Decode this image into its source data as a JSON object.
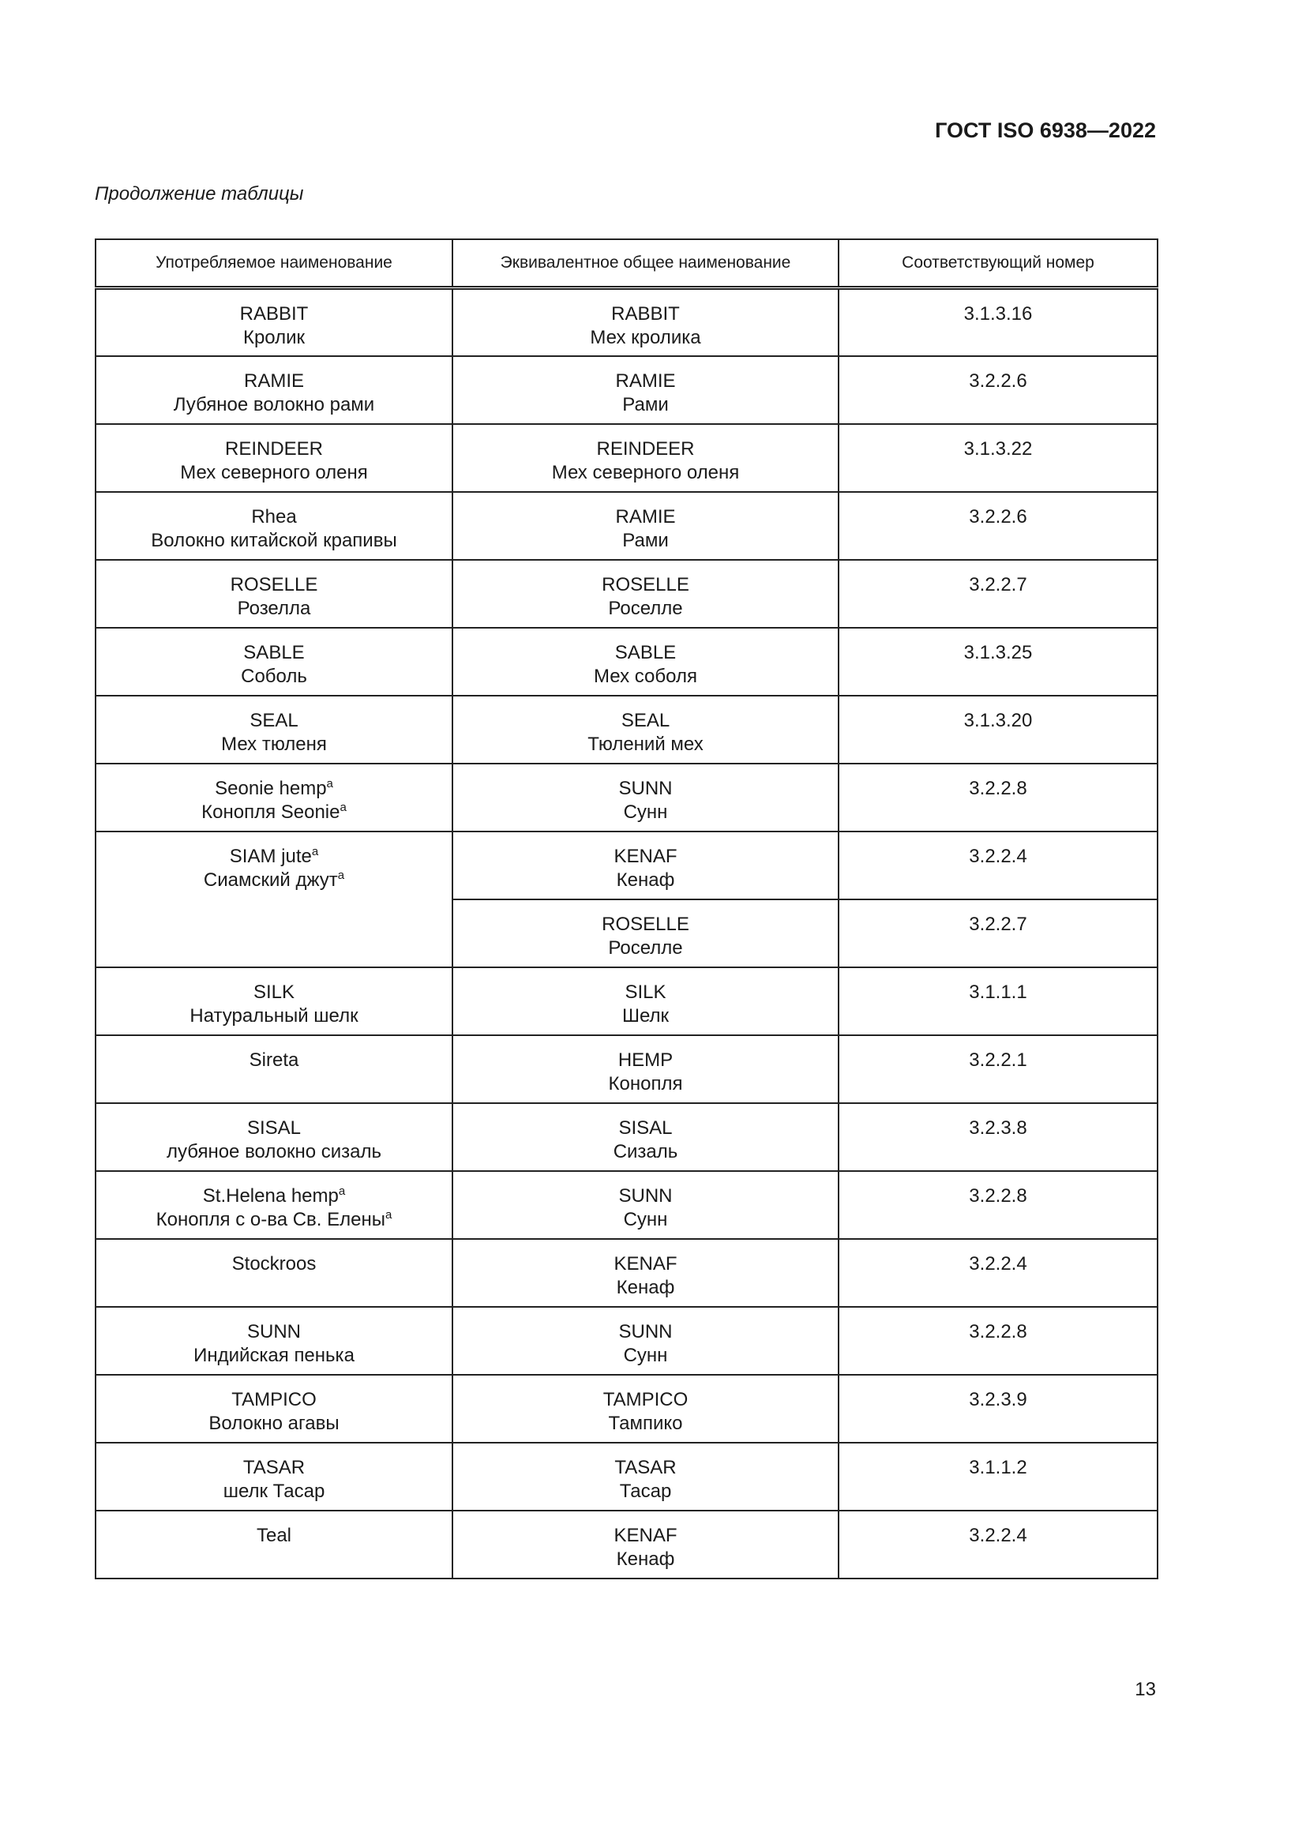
{
  "header": {
    "document_id": "ГОСТ ISO 6938—2022"
  },
  "caption": "Продолжение таблицы",
  "table": {
    "columns": [
      "Употребляемое наименование",
      "Эквивалентное общее наименование",
      "Соответствующий номер"
    ],
    "footnote_mark": "a",
    "rows": [
      {
        "used": [
          "RABBIT",
          "Кролик"
        ],
        "equivalent": [
          "RABBIT",
          "Мех кролика"
        ],
        "number": "3.1.3.16"
      },
      {
        "used": [
          "RAMIE",
          "Лубяное волокно рами"
        ],
        "equivalent": [
          "RAMIE",
          "Рами"
        ],
        "number": "3.2.2.6"
      },
      {
        "used": [
          "REINDEER",
          "Мех северного оленя"
        ],
        "equivalent": [
          "REINDEER",
          "Мех северного оленя"
        ],
        "number": "3.1.3.22"
      },
      {
        "used": [
          "Rhea",
          "Волокно китайской крапивы"
        ],
        "equivalent": [
          "RAMIE",
          "Рами"
        ],
        "number": "3.2.2.6"
      },
      {
        "used": [
          "ROSELLE",
          "Розелла"
        ],
        "equivalent": [
          "ROSELLE",
          "Роселле"
        ],
        "number": "3.2.2.7"
      },
      {
        "used": [
          "SABLE",
          "Соболь"
        ],
        "equivalent": [
          "SABLE",
          "Мех соболя"
        ],
        "number": "3.1.3.25"
      },
      {
        "used": [
          "SEAL",
          "Мех тюленя"
        ],
        "equivalent": [
          "SEAL",
          "Тюлений мех"
        ],
        "number": "3.1.3.20"
      },
      {
        "used": [
          "Seonie hemp",
          "Конопля Seonie"
        ],
        "equivalent": [
          "SUNN",
          "Сунн"
        ],
        "number": "3.2.2.8"
      },
      {
        "used": [
          "SIAM jute",
          "Сиамский джут"
        ],
        "equivalent": [
          "KENAF",
          "Кенаф"
        ],
        "number": "3.2.2.4"
      },
      {
        "used": null,
        "equivalent": [
          "ROSELLE",
          "Роселле"
        ],
        "number": "3.2.2.7"
      },
      {
        "used": [
          "SILK",
          "Натуральный шелк"
        ],
        "equivalent": [
          "SILK",
          "Шелк"
        ],
        "number": "3.1.1.1"
      },
      {
        "used": [
          "Sireta"
        ],
        "equivalent": [
          "HEMP",
          "Конопля"
        ],
        "number": "3.2.2.1"
      },
      {
        "used": [
          "SISAL",
          "лубяное волокно сизаль"
        ],
        "equivalent": [
          "SISAL",
          "Сизаль"
        ],
        "number": "3.2.3.8"
      },
      {
        "used": [
          "St.Helena hemp",
          "Конопля с о-ва Св. Елены"
        ],
        "equivalent": [
          "SUNN",
          "Сунн"
        ],
        "number": "3.2.2.8"
      },
      {
        "used": [
          "Stockroos"
        ],
        "equivalent": [
          "KENAF",
          "Кенаф"
        ],
        "number": "3.2.2.4"
      },
      {
        "used": [
          "SUNN",
          "Индийская пенька"
        ],
        "equivalent": [
          "SUNN",
          "Сунн"
        ],
        "number": "3.2.2.8"
      },
      {
        "used": [
          "TAMPICO",
          "Волокно агавы"
        ],
        "equivalent": [
          "TAMPICO",
          "Тампико"
        ],
        "number": "3.2.3.9"
      },
      {
        "used": [
          "TASAR",
          "шелк Тасар"
        ],
        "equivalent": [
          "TASAR",
          "Тасар"
        ],
        "number": "3.1.1.2"
      },
      {
        "used": [
          "Teal"
        ],
        "equivalent": [
          "KENAF",
          "Кенаф"
        ],
        "number": "3.2.2.4"
      }
    ]
  },
  "page_number": "13"
}
